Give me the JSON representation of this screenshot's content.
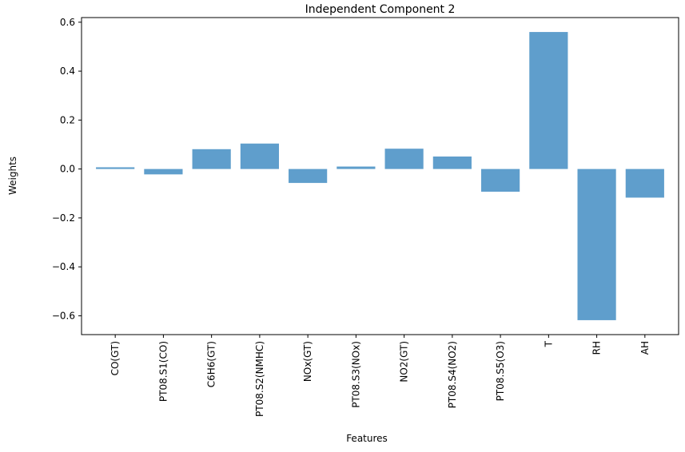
{
  "chart_data": {
    "type": "bar",
    "title": "Independent Component 2",
    "xlabel": "Features",
    "ylabel": "Weights",
    "categories": [
      "CO(GT)",
      "PT08.S1(CO)",
      "C6H6(GT)",
      "PT08.S2(NMHC)",
      "NOx(GT)",
      "PT08.S3(NOx)",
      "NO2(GT)",
      "PT08.S4(NO2)",
      "PT08.S5(O3)",
      "T",
      "RH",
      "AH"
    ],
    "values": [
      0.007,
      -0.022,
      0.081,
      0.104,
      -0.057,
      0.01,
      0.083,
      0.051,
      -0.093,
      0.56,
      -0.618,
      -0.117
    ],
    "ylim": [
      -0.677,
      0.619
    ],
    "yticks": [
      -0.6,
      -0.4,
      -0.2,
      0.0,
      0.2,
      0.4,
      0.6
    ],
    "ytick_labels": [
      "−0.6",
      "−0.4",
      "−0.2",
      "0.0",
      "0.2",
      "0.4",
      "0.6"
    ],
    "bar_color": "#5f9ecc",
    "grid": false,
    "legend": "none"
  }
}
